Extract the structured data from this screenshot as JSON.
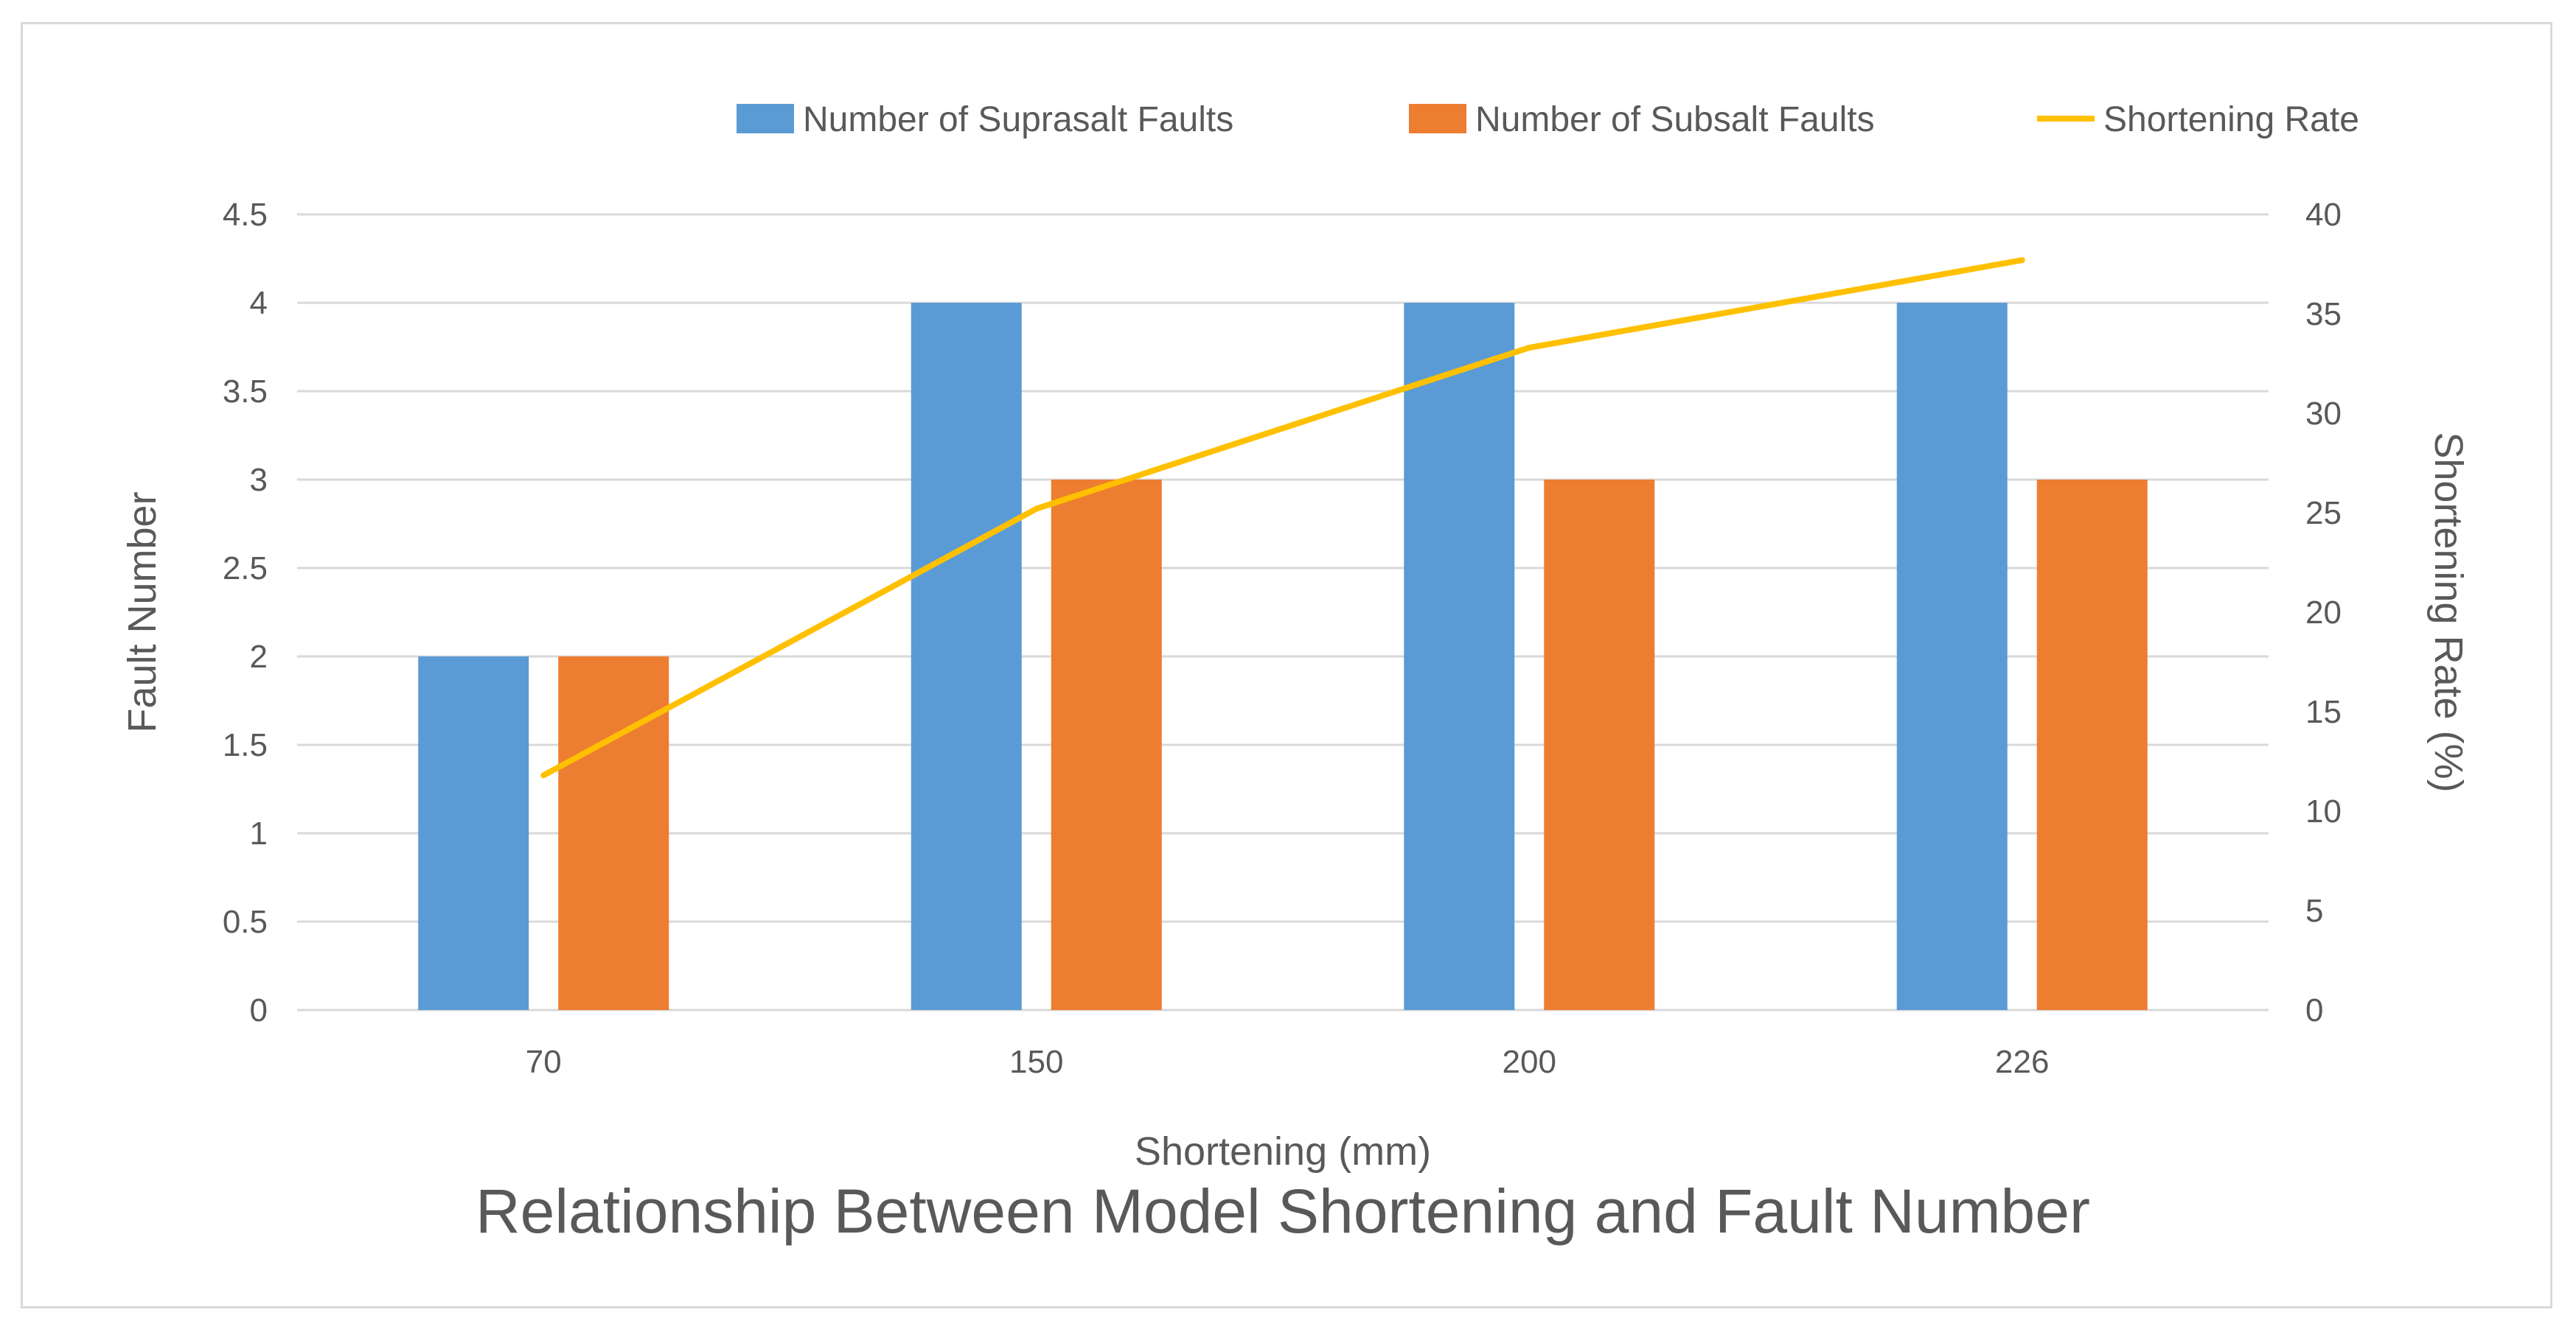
{
  "chart_data": {
    "type": "bar",
    "title": "Relationship Between Model Shortening and Fault Number",
    "xlabel": "Shortening (mm)",
    "ylabel": "Fault Number",
    "y2label": "Shortening Rate (%)",
    "categories": [
      "70",
      "150",
      "200",
      "226"
    ],
    "ylim": [
      0,
      4.5
    ],
    "yticks": [
      "0",
      "0.5",
      "1",
      "1.5",
      "2",
      "2.5",
      "3",
      "3.5",
      "4",
      "4.5"
    ],
    "y2lim": [
      0,
      40
    ],
    "y2ticks": [
      "0",
      "5",
      "10",
      "15",
      "20",
      "25",
      "30",
      "35",
      "40"
    ],
    "series": [
      {
        "name": "Number of Suprasalt Faults",
        "type": "bar",
        "color": "#5b9bd5",
        "values": [
          2,
          4,
          4,
          4
        ]
      },
      {
        "name": "Number of Subsalt Faults",
        "type": "bar",
        "color": "#ed7d31",
        "values": [
          2,
          3,
          3,
          3
        ]
      },
      {
        "name": "Shortening Rate",
        "type": "line",
        "axis": "right",
        "color": "#ffc000",
        "values": [
          11.8,
          25.2,
          33.3,
          37.7
        ]
      }
    ],
    "grid": true,
    "legend": "top-right"
  }
}
